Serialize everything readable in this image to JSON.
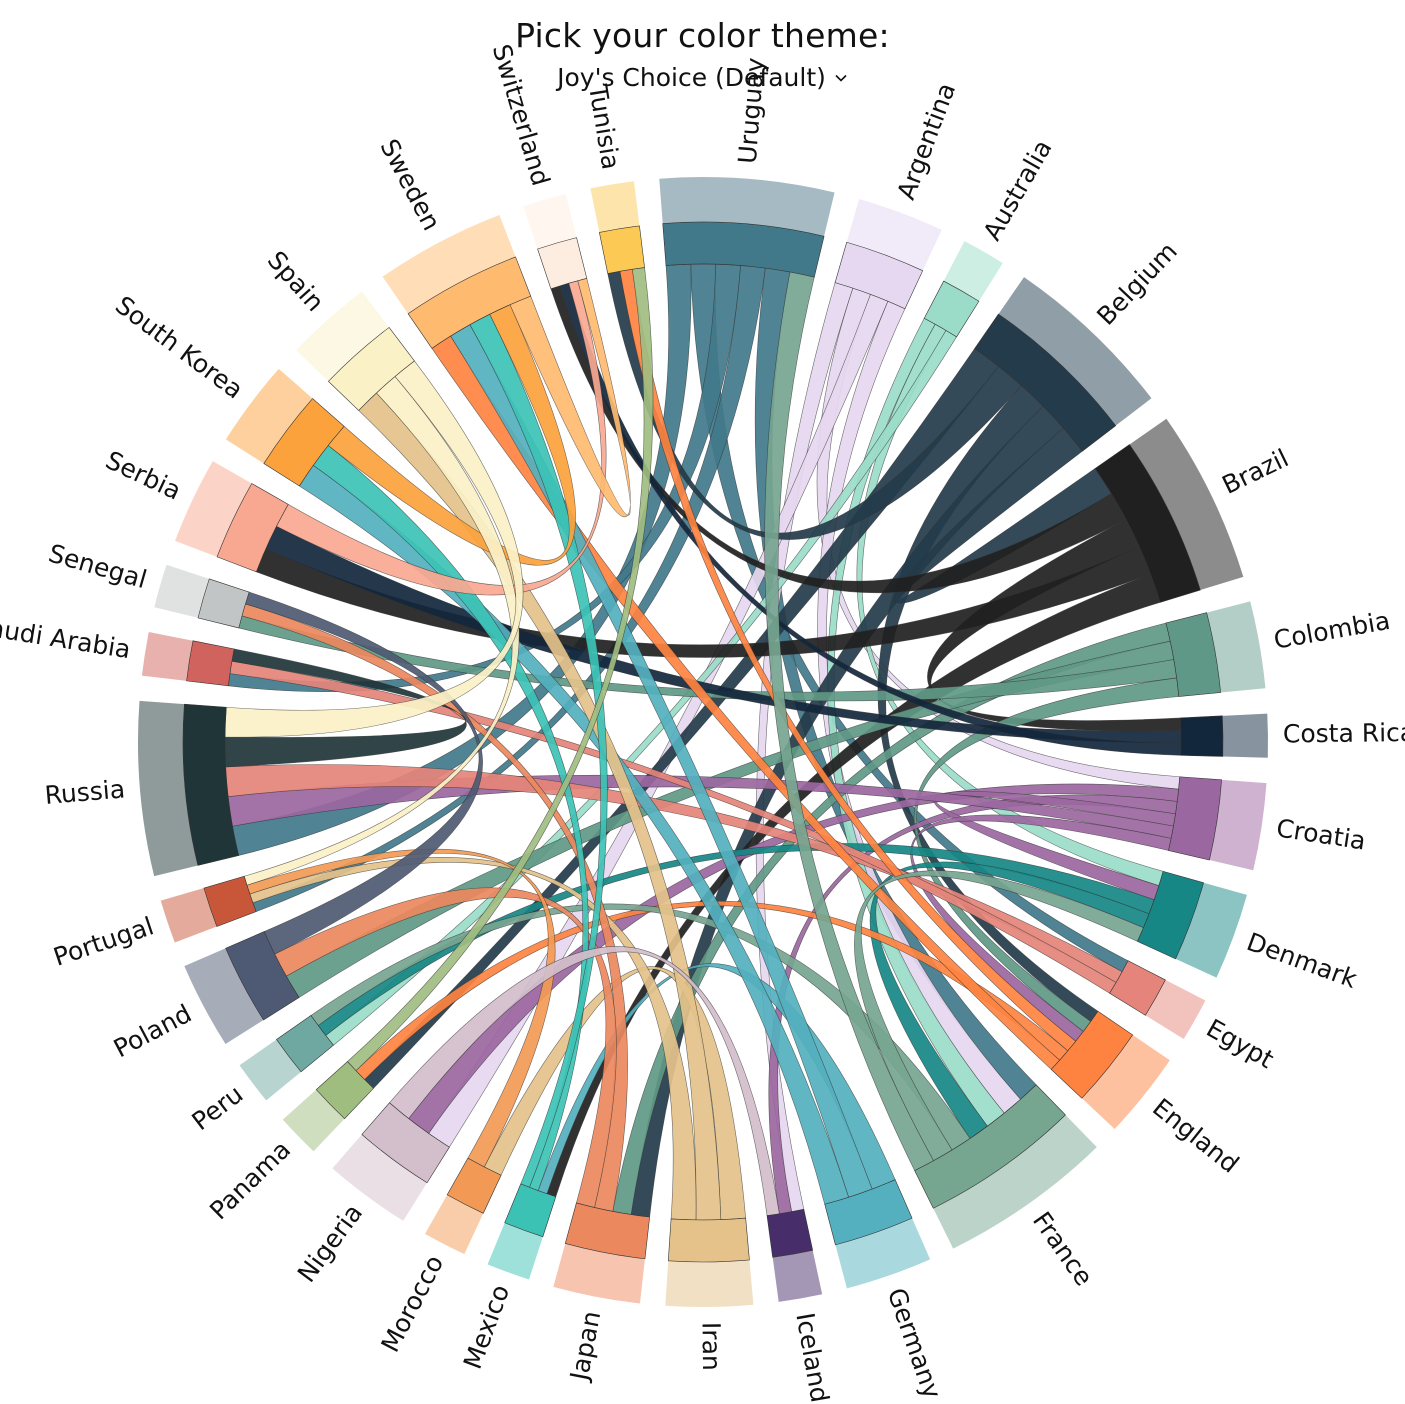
{
  "header": {
    "title": "Pick your color theme:",
    "theme_selected": "Joy's Choice (Default)"
  },
  "chart_data": {
    "type": "chord",
    "title": "",
    "groups": [
      {
        "name": "Uruguay",
        "weight": 4,
        "color": "#41788A",
        "outer": "#A6BAC4"
      },
      {
        "name": "Argentina",
        "weight": 2,
        "color": "#E6D8F0",
        "outer": "#F1EAF8"
      },
      {
        "name": "Australia",
        "weight": 1,
        "color": "#9ADCC8",
        "outer": "#CDEEE3"
      },
      {
        "name": "Belgium",
        "weight": 4,
        "color": "#233B4A",
        "outer": "#909EA8"
      },
      {
        "name": "Brazil",
        "weight": 4,
        "color": "#202020",
        "outer": "#8C8C8C"
      },
      {
        "name": "Colombia",
        "weight": 2,
        "color": "#5F9886",
        "outer": "#B3CEC6"
      },
      {
        "name": "Costa Rica",
        "weight": 1,
        "color": "#12263C",
        "outer": "#87939E"
      },
      {
        "name": "Croatia",
        "weight": 2,
        "color": "#9B67A0",
        "outer": "#CEB2D0"
      },
      {
        "name": "Denmark",
        "weight": 2,
        "color": "#168784",
        "outer": "#8BC4C2"
      },
      {
        "name": "Egypt",
        "weight": 1,
        "color": "#E5847A",
        "outer": "#F2C2BD"
      },
      {
        "name": "England",
        "weight": 2,
        "color": "#FE8340",
        "outer": "#FEC1A0"
      },
      {
        "name": "France",
        "weight": 4,
        "color": "#76A590",
        "outer": "#BBD3C8"
      },
      {
        "name": "Germany",
        "weight": 2,
        "color": "#54B0BE",
        "outer": "#AAD8DF"
      },
      {
        "name": "Iceland",
        "weight": 1,
        "color": "#472E6B",
        "outer": "#A397B5"
      },
      {
        "name": "Iran",
        "weight": 2,
        "color": "#E4C28A",
        "outer": "#F2E0C5"
      },
      {
        "name": "Japan",
        "weight": 2,
        "color": "#EC885E",
        "outer": "#F6C4AF"
      },
      {
        "name": "Mexico",
        "weight": 1,
        "color": "#3CC2B5",
        "outer": "#9EE1DA"
      },
      {
        "name": "Morocco",
        "weight": 1,
        "color": "#F29A55",
        "outer": "#F9CDAA"
      },
      {
        "name": "Nigeria",
        "weight": 2,
        "color": "#D3BECB",
        "outer": "#E9DFE5"
      },
      {
        "name": "Panama",
        "weight": 1,
        "color": "#A0BD80",
        "outer": "#D0DEC0"
      },
      {
        "name": "Peru",
        "weight": 1,
        "color": "#6FA8A1",
        "outer": "#B7D4D0"
      },
      {
        "name": "Poland",
        "weight": 2,
        "color": "#4E5A73",
        "outer": "#A6ADB9"
      },
      {
        "name": "Portugal",
        "weight": 1,
        "color": "#C8573A",
        "outer": "#E4AB9D"
      },
      {
        "name": "Russia",
        "weight": 4,
        "color": "#203538",
        "outer": "#8F9A9B"
      },
      {
        "name": "Saudi Arabia",
        "weight": 1,
        "color": "#D0635E",
        "outer": "#E8B1AE"
      },
      {
        "name": "Senegal",
        "weight": 1,
        "color": "#C2C5C5",
        "outer": "#E0E2E2"
      },
      {
        "name": "Serbia",
        "weight": 2,
        "color": "#F8A890",
        "outer": "#FCD3C7"
      },
      {
        "name": "South Korea",
        "weight": 2,
        "color": "#FCA23C",
        "outer": "#FDD09D"
      },
      {
        "name": "Spain",
        "weight": 2,
        "color": "#FBF1C7",
        "outer": "#FDF8E3"
      },
      {
        "name": "Sweden",
        "weight": 3,
        "color": "#FEBB70",
        "outer": "#FEDDB7"
      },
      {
        "name": "Switzerland",
        "weight": 1,
        "color": "#FDEDE0",
        "outer": "#FEF6EF"
      },
      {
        "name": "Tunisia",
        "weight": 1,
        "color": "#FCC955",
        "outer": "#FDE4AA"
      }
    ],
    "links": [
      [
        "Uruguay",
        "Russia"
      ],
      [
        "Uruguay",
        "Egypt"
      ],
      [
        "Uruguay",
        "Saudi Arabia"
      ],
      [
        "Uruguay",
        "Portugal"
      ],
      [
        "Uruguay",
        "France"
      ],
      [
        "Argentina",
        "Iceland"
      ],
      [
        "Argentina",
        "Croatia"
      ],
      [
        "Argentina",
        "Nigeria"
      ],
      [
        "Argentina",
        "France"
      ],
      [
        "Australia",
        "France"
      ],
      [
        "Australia",
        "Denmark"
      ],
      [
        "Australia",
        "Peru"
      ],
      [
        "Belgium",
        "Panama"
      ],
      [
        "Belgium",
        "Tunisia"
      ],
      [
        "Belgium",
        "England"
      ],
      [
        "Belgium",
        "Japan"
      ],
      [
        "Belgium",
        "Brazil"
      ],
      [
        "Brazil",
        "Switzerland"
      ],
      [
        "Brazil",
        "Costa Rica"
      ],
      [
        "Brazil",
        "Serbia"
      ],
      [
        "Brazil",
        "Mexico"
      ],
      [
        "Colombia",
        "Japan"
      ],
      [
        "Colombia",
        "Poland"
      ],
      [
        "Colombia",
        "Senegal"
      ],
      [
        "Colombia",
        "England"
      ],
      [
        "Costa Rica",
        "Serbia"
      ],
      [
        "Costa Rica",
        "Switzerland"
      ],
      [
        "Croatia",
        "Nigeria"
      ],
      [
        "Croatia",
        "Iceland"
      ],
      [
        "Croatia",
        "Denmark"
      ],
      [
        "Croatia",
        "Russia"
      ],
      [
        "Croatia",
        "England"
      ],
      [
        "Denmark",
        "Peru"
      ],
      [
        "Denmark",
        "France"
      ],
      [
        "Egypt",
        "Russia"
      ],
      [
        "Egypt",
        "Saudi Arabia"
      ],
      [
        "England",
        "Tunisia"
      ],
      [
        "England",
        "Panama"
      ],
      [
        "England",
        "Sweden"
      ],
      [
        "France",
        "Peru"
      ],
      [
        "France",
        "Denmark"
      ],
      [
        "France",
        "Uruguay"
      ],
      [
        "Germany",
        "Mexico"
      ],
      [
        "Germany",
        "Sweden"
      ],
      [
        "Germany",
        "South Korea"
      ],
      [
        "Iran",
        "Morocco"
      ],
      [
        "Iran",
        "Spain"
      ],
      [
        "Iran",
        "Portugal"
      ],
      [
        "Japan",
        "Senegal"
      ],
      [
        "Japan",
        "Poland"
      ],
      [
        "Mexico",
        "South Korea"
      ],
      [
        "Mexico",
        "Sweden"
      ],
      [
        "Morocco",
        "Portugal"
      ],
      [
        "Nigeria",
        "Iceland"
      ],
      [
        "Panama",
        "Tunisia"
      ],
      [
        "Poland",
        "Senegal"
      ],
      [
        "Russia",
        "Saudi Arabia"
      ],
      [
        "Serbia",
        "Switzerland"
      ],
      [
        "South Korea",
        "Sweden"
      ],
      [
        "Spain",
        "Portugal"
      ],
      [
        "Spain",
        "Russia"
      ],
      [
        "Sweden",
        "Switzerland"
      ]
    ],
    "legend": "none",
    "grid": false
  }
}
